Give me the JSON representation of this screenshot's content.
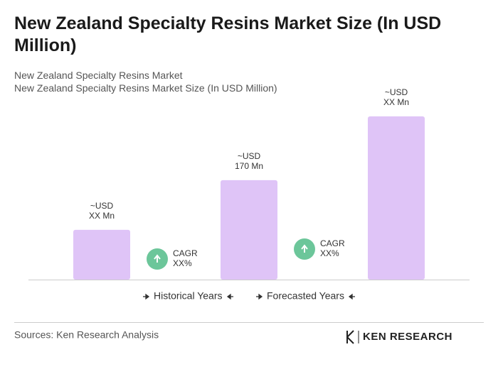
{
  "chart_data": {
    "type": "bar",
    "title": "New Zealand Specialty Resins Market Size (In USD Million)",
    "subtitles": [
      "New Zealand Specialty Resins Market",
      "New Zealand Specialty Resins Market Size (In USD Million)"
    ],
    "categories": [
      null,
      null,
      null
    ],
    "values": [
      85,
      170,
      279
    ],
    "value_labels": [
      [
        "~USD",
        "XX Mn"
      ],
      [
        "~USD",
        "170 Mn"
      ],
      [
        "~USD",
        "XX Mn"
      ]
    ],
    "color": "#dfc4f7",
    "annotations": [
      [
        "CAGR",
        "XX%"
      ],
      [
        "CAGR",
        "XX%"
      ]
    ],
    "annotation_color": "#6cc69a",
    "periods": [
      "Historical Years",
      "Forecasted Years"
    ],
    "source": "Sources: Ken Research Analysis",
    "brand": "KEN RESEARCH"
  }
}
